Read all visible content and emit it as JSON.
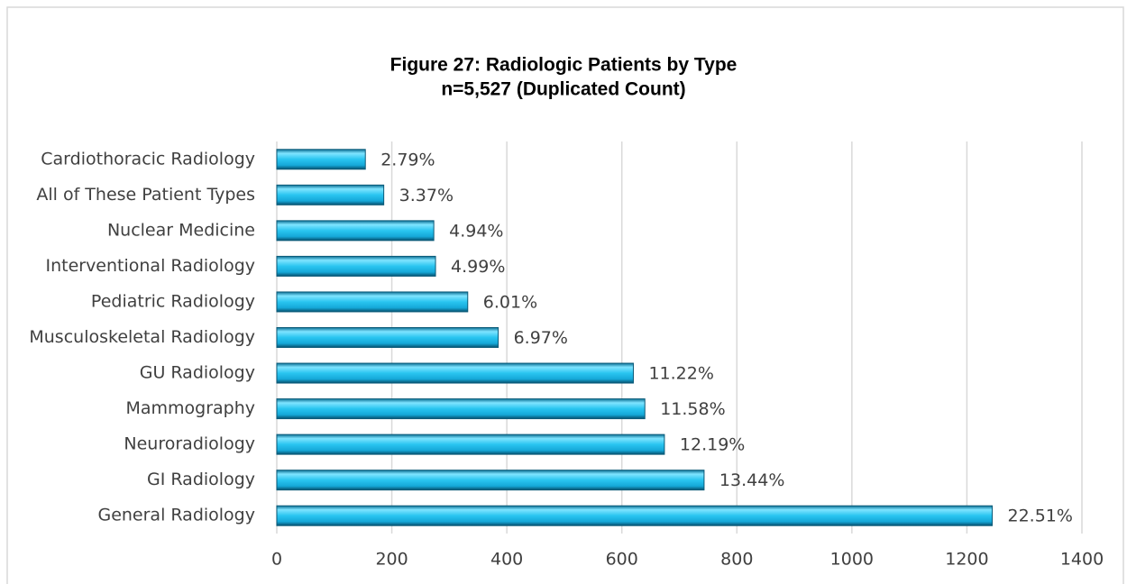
{
  "chart_data": {
    "type": "bar",
    "orientation": "horizontal",
    "title": "Figure 27: Radiologic Patients by Type",
    "subtitle": "n=5,527 (Duplicated Count)",
    "categories": [
      "Cardiothoracic Radiology",
      "All of These Patient Types",
      "Nuclear Medicine",
      "Interventional Radiology",
      "Pediatric Radiology",
      "Musculoskeletal Radiology",
      "GU Radiology",
      "Mammography",
      "Neuroradiology",
      "GI Radiology",
      "General Radiology"
    ],
    "values": [
      154,
      186,
      273,
      276,
      332,
      385,
      620,
      640,
      674,
      743,
      1244
    ],
    "value_labels": [
      "2.79%",
      "3.37%",
      "4.94%",
      "4.99%",
      "6.01%",
      "6.97%",
      "11.22%",
      "11.58%",
      "12.19%",
      "13.44%",
      "22.51%"
    ],
    "color": "#29c5f0",
    "xlim": [
      0,
      1400
    ],
    "xticks": [
      0,
      200,
      400,
      600,
      800,
      1000,
      1200,
      1400
    ],
    "grid": true
  }
}
